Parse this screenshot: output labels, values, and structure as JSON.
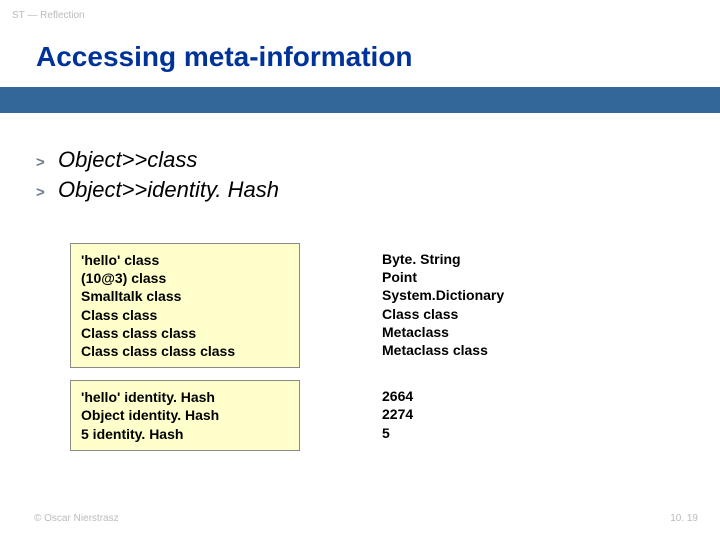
{
  "header_label": "ST — Reflection",
  "title": "Accessing meta-information",
  "bullets": {
    "sym": ">",
    "items": [
      "Object>>class",
      "Object>>identity. Hash"
    ]
  },
  "boxes": {
    "top_left": [
      "'hello' class",
      "(10@3) class",
      "Smalltalk class",
      "Class class",
      "Class class class",
      "Class class class class"
    ],
    "top_right": [
      "Byte. String",
      "Point",
      "System.Dictionary",
      "Class class",
      "Metaclass",
      "Metaclass class"
    ],
    "bottom_left": [
      "'hello' identity. Hash",
      "Object identity. Hash",
      "5 identity. Hash"
    ],
    "bottom_right": [
      "2664",
      "2274",
      "5"
    ]
  },
  "footer": {
    "left": "© Oscar Nierstrasz",
    "right": "10. 19"
  },
  "colors": {
    "title": "#003399",
    "band": "#336699",
    "box_bg": "#ffffcc"
  }
}
